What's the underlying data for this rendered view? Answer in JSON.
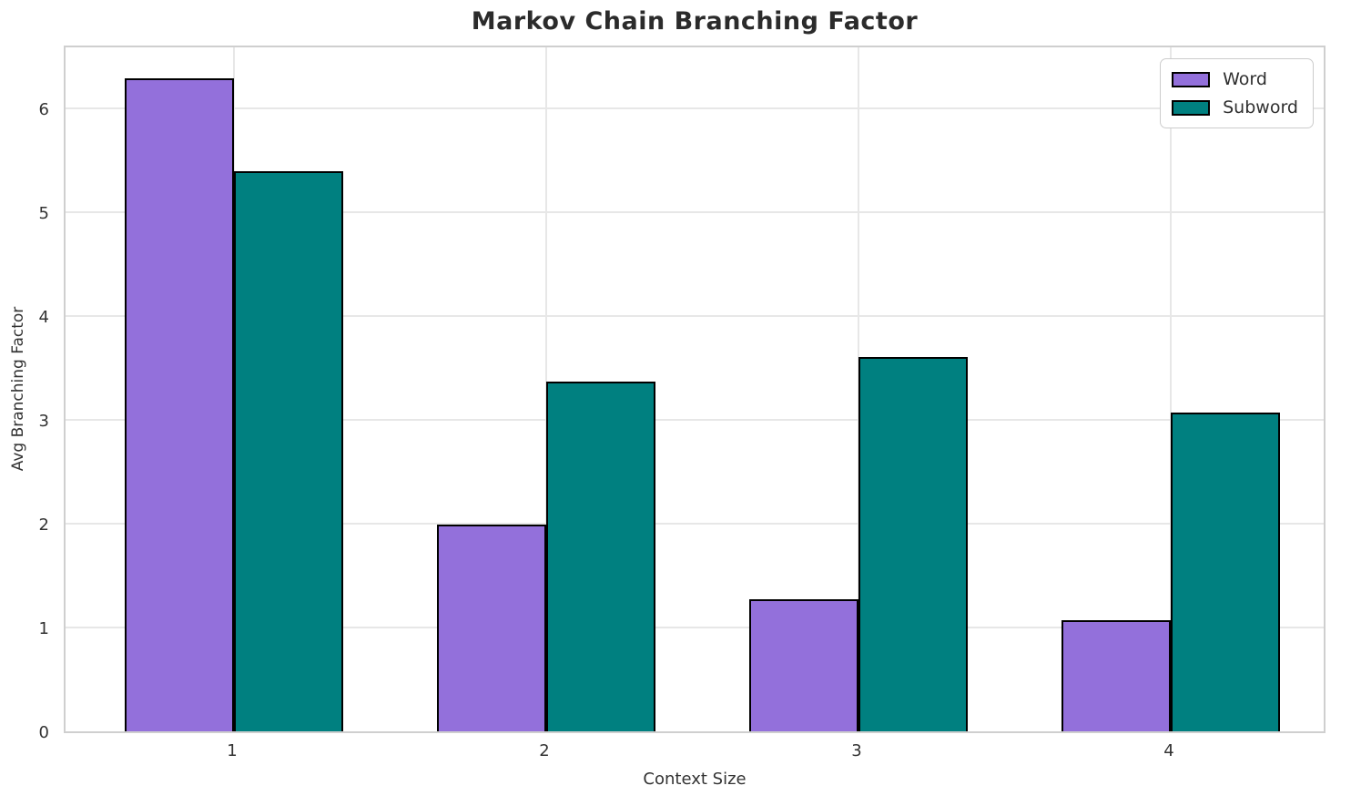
{
  "chart_data": {
    "type": "bar",
    "title": "Markov Chain Branching Factor",
    "xlabel": "Context Size",
    "ylabel": "Avg Branching Factor",
    "categories": [
      "1",
      "2",
      "3",
      "4"
    ],
    "series": [
      {
        "name": "Word",
        "color": "#9370DB",
        "values": [
          6.29,
          1.99,
          1.27,
          1.07
        ]
      },
      {
        "name": "Subword",
        "color": "#008080",
        "values": [
          5.39,
          3.37,
          3.6,
          3.07
        ]
      }
    ],
    "bar_edge_color": "#000000",
    "ylim": [
      0,
      6.62
    ],
    "yticks": [
      0,
      1,
      2,
      3,
      4,
      5,
      6
    ],
    "grid": true,
    "legend_position": "upper right"
  }
}
